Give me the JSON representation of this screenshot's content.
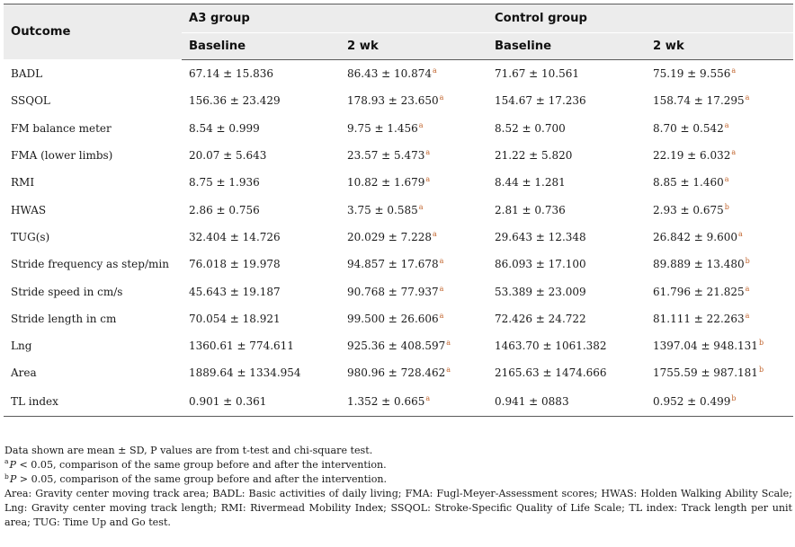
{
  "table": {
    "header": {
      "outcome": "Outcome",
      "group_a3": "A3 group",
      "group_control": "Control group",
      "baseline": "Baseline",
      "week2": "2 wk"
    },
    "rows": [
      {
        "outcome": "BADL",
        "a3_base": "67.14 ± 15.836",
        "a3_2wk": "86.43 ± 10.874",
        "a3_2wk_mark": "a",
        "ctl_base": "71.67 ± 10.561",
        "ctl_2wk": "75.19 ± 9.556",
        "ctl_2wk_mark": "a"
      },
      {
        "outcome": "SSQOL",
        "a3_base": "156.36 ± 23.429",
        "a3_2wk": "178.93 ± 23.650",
        "a3_2wk_mark": "a",
        "ctl_base": "154.67 ± 17.236",
        "ctl_2wk": "158.74 ± 17.295",
        "ctl_2wk_mark": "a"
      },
      {
        "outcome": "FM balance meter",
        "a3_base": "8.54 ± 0.999",
        "a3_2wk": "9.75 ± 1.456",
        "a3_2wk_mark": "a",
        "ctl_base": "8.52 ± 0.700",
        "ctl_2wk": "8.70 ± 0.542",
        "ctl_2wk_mark": "a"
      },
      {
        "outcome": "FMA (lower limbs)",
        "a3_base": "20.07 ± 5.643",
        "a3_2wk": "23.57 ± 5.473",
        "a3_2wk_mark": "a",
        "ctl_base": "21.22 ± 5.820",
        "ctl_2wk": "22.19 ± 6.032",
        "ctl_2wk_mark": "a"
      },
      {
        "outcome": "RMI",
        "a3_base": "8.75 ± 1.936",
        "a3_2wk": "10.82 ± 1.679",
        "a3_2wk_mark": "a",
        "ctl_base": "8.44 ± 1.281",
        "ctl_2wk": "8.85 ± 1.460",
        "ctl_2wk_mark": "a"
      },
      {
        "outcome": "HWAS",
        "a3_base": "2.86 ± 0.756",
        "a3_2wk": "3.75 ± 0.585",
        "a3_2wk_mark": "a",
        "ctl_base": "2.81 ± 0.736",
        "ctl_2wk": "2.93 ± 0.675",
        "ctl_2wk_mark": "b"
      },
      {
        "outcome": "TUG(s)",
        "a3_base": "32.404 ± 14.726",
        "a3_2wk": "20.029 ± 7.228",
        "a3_2wk_mark": "a",
        "ctl_base": "29.643 ± 12.348",
        "ctl_2wk": "26.842 ± 9.600",
        "ctl_2wk_mark": "a"
      },
      {
        "outcome": "Stride frequency as step/min",
        "a3_base": "76.018 ± 19.978",
        "a3_2wk": "94.857 ± 17.678",
        "a3_2wk_mark": "a",
        "ctl_base": "86.093 ± 17.100",
        "ctl_2wk": "89.889 ± 13.480",
        "ctl_2wk_mark": "b"
      },
      {
        "outcome": "Stride speed in cm/s",
        "a3_base": "45.643 ± 19.187",
        "a3_2wk": "90.768 ± 77.937",
        "a3_2wk_mark": "a",
        "ctl_base": "53.389 ± 23.009",
        "ctl_2wk": "61.796 ± 21.825",
        "ctl_2wk_mark": "a"
      },
      {
        "outcome": "Stride length in cm",
        "a3_base": "70.054 ± 18.921",
        "a3_2wk": "99.500 ± 26.606",
        "a3_2wk_mark": "a",
        "ctl_base": "72.426 ± 24.722",
        "ctl_2wk": "81.111 ± 22.263",
        "ctl_2wk_mark": "a"
      },
      {
        "outcome": "Lng",
        "a3_base": "1360.61 ± 774.611",
        "a3_2wk": "925.36 ± 408.597",
        "a3_2wk_mark": "a",
        "ctl_base": "1463.70 ± 1061.382",
        "ctl_2wk": "1397.04 ± 948.131",
        "ctl_2wk_mark": "b"
      },
      {
        "outcome": "Area",
        "a3_base": "1889.64 ± 1334.954",
        "a3_2wk": "980.96 ± 728.462",
        "a3_2wk_mark": "a",
        "ctl_base": "2165.63 ± 1474.666",
        "ctl_2wk": "1755.59 ± 987.181",
        "ctl_2wk_mark": "b"
      },
      {
        "outcome": "TL index",
        "a3_base": "0.901 ± 0.361",
        "a3_2wk": "1.352 ± 0.665",
        "a3_2wk_mark": "a",
        "ctl_base": "0.941 ± 0883",
        "ctl_2wk": "0.952 ± 0.499",
        "ctl_2wk_mark": "b"
      }
    ]
  },
  "notes": {
    "line1": "Data shown are mean ± SD, P values are from t-test and chi-square test.",
    "a_mark": "a",
    "a_p": "P",
    "a_text": " < 0.05, comparison of the same group before and after the intervention.",
    "b_mark": "b",
    "b_p": "P",
    "b_text": " > 0.05, comparison of the same group before and after the intervention.",
    "abbreviations": "Area: Gravity center moving track area; BADL: Basic activities of daily living; FMA: Fugl-Meyer-Assessment scores; HWAS: Holden Walking Ability Scale; Lng: Gravity center moving track length; RMI: Rivermead Mobility Index; SSQOL: Stroke-Specific Quality of Life Scale; TL index: Track length per unit area; TUG: Time Up and Go test."
  }
}
